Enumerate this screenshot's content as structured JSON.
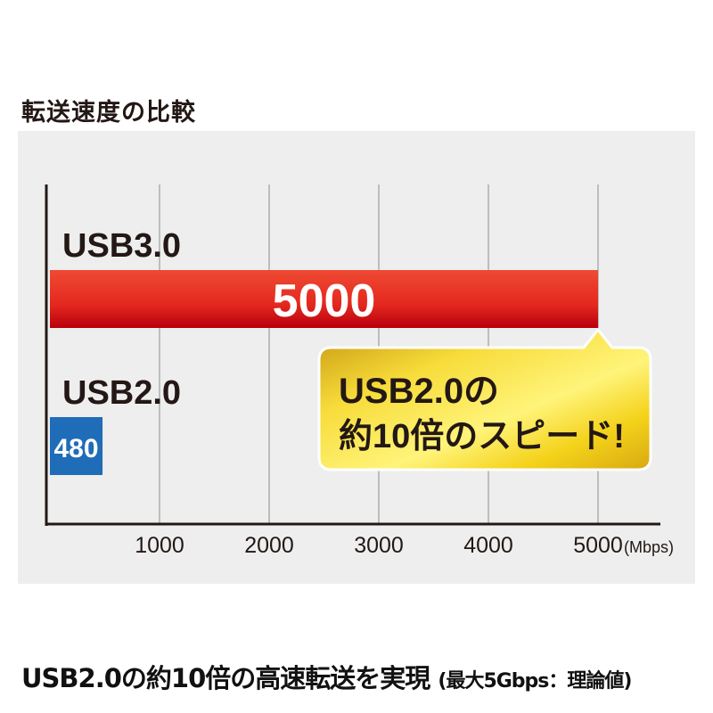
{
  "title": "転送速度の比較",
  "chart_data": {
    "type": "bar",
    "orientation": "horizontal",
    "categories": [
      "USB3.0",
      "USB2.0"
    ],
    "values": [
      5000,
      480
    ],
    "value_labels": [
      "5000",
      "480"
    ],
    "xlim": [
      0,
      5500
    ],
    "x_ticks": [
      1000,
      2000,
      3000,
      4000,
      5000
    ],
    "x_tick_labels": [
      "1000",
      "2000",
      "3000",
      "4000",
      "5000"
    ],
    "x_unit": "(Mbps)",
    "grid": true,
    "bar_colors": [
      "#e8302a",
      "#1f6cb8"
    ],
    "annotation": {
      "lines": [
        "USB2.0の",
        "約10倍のスピード!"
      ],
      "color": "#f4d21a"
    }
  },
  "caption": {
    "main": "USB2.0の約10倍の高速転送を実現",
    "note": "(最大5Gbps：理論値)"
  }
}
